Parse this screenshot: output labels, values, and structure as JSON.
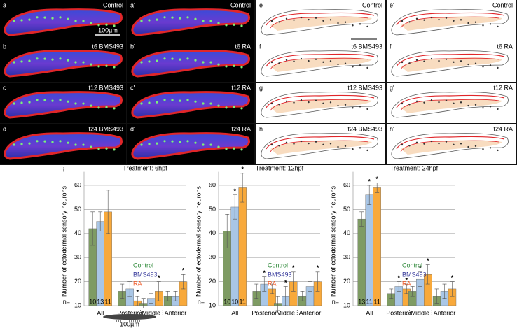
{
  "figure_letter": "i",
  "panels": [
    {
      "letter": "a",
      "label": "Control"
    },
    {
      "letter": "a'",
      "label": "Control"
    },
    {
      "letter": "b",
      "label": "t6 BMS493"
    },
    {
      "letter": "b'",
      "label": "t6 RA"
    },
    {
      "letter": "c",
      "label": "t12 BMS493"
    },
    {
      "letter": "c'",
      "label": "t12 RA"
    },
    {
      "letter": "d",
      "label": "t24 BMS493"
    },
    {
      "letter": "d'",
      "label": "t24 RA"
    }
  ],
  "diagrams": [
    {
      "letter": "e",
      "label": "Control"
    },
    {
      "letter": "e'",
      "label": "Control"
    },
    {
      "letter": "f",
      "label": "t6 BMS493"
    },
    {
      "letter": "f'",
      "label": "t6 RA"
    },
    {
      "letter": "g",
      "label": "t12 BMS493"
    },
    {
      "letter": "g'",
      "label": "t12 RA"
    },
    {
      "letter": "h",
      "label": "t24 BMS493"
    },
    {
      "letter": "h'",
      "label": "t24 RA"
    }
  ],
  "scale_bar_images": "100µm",
  "scale_bar_diagrams": "100µm",
  "scale_bar_chart": "100µm",
  "chart_data": [
    {
      "type": "bar",
      "title": "Treatment: 6hpf",
      "y_label": "Number of ectodermal sensory neurons",
      "categories": [
        "All",
        "Posterior",
        "Middle",
        "Anterior"
      ],
      "ylim": [
        10,
        70
      ],
      "yticks": [
        10,
        20,
        30,
        40,
        50,
        60
      ],
      "grid": true,
      "n_label": "n=",
      "marker": "*",
      "series": [
        {
          "name": "Control",
          "color": "#7e9b63",
          "legend_color": "#2f8a3a",
          "values": [
            42,
            16,
            11,
            14
          ],
          "errors": [
            7,
            3,
            2,
            2
          ],
          "significant": [
            false,
            false,
            false,
            false
          ],
          "n": 10
        },
        {
          "name": "BMS493",
          "color": "#a9c6e6",
          "legend_color": "#34379a",
          "values": [
            45,
            17,
            13,
            14
          ],
          "errors": [
            4,
            3,
            2,
            2
          ],
          "significant": [
            false,
            false,
            false,
            false
          ],
          "n": 13
        },
        {
          "name": "RA",
          "color": "#f8a93b",
          "legend_color": "#f05a28",
          "values": [
            49,
            12,
            16,
            20
          ],
          "errors": [
            9,
            2,
            4,
            3
          ],
          "significant": [
            false,
            true,
            true,
            true
          ],
          "n": 11
        }
      ]
    },
    {
      "type": "bar",
      "title": "Treatment: 12hpf",
      "y_label": "Number of ectodermal sensory neurons",
      "categories": [
        "All",
        "Posterior",
        "Middle",
        "Anterior"
      ],
      "ylim": [
        10,
        70
      ],
      "yticks": [
        10,
        20,
        30,
        40,
        50,
        60
      ],
      "grid": true,
      "n_label": "n=",
      "marker": "*",
      "series": [
        {
          "name": "Control",
          "color": "#7e9b63",
          "legend_color": "#2f8a3a",
          "values": [
            41,
            16,
            11,
            14
          ],
          "errors": [
            7,
            3,
            3,
            2
          ],
          "significant": [
            false,
            false,
            false,
            false
          ],
          "n": 10
        },
        {
          "name": "BMS493",
          "color": "#a9c6e6",
          "legend_color": "#34379a",
          "values": [
            51,
            19,
            14,
            18
          ],
          "errors": [
            5,
            3,
            4,
            2
          ],
          "significant": [
            true,
            true,
            true,
            false
          ],
          "n": 10
        },
        {
          "name": "RA",
          "color": "#f8a93b",
          "legend_color": "#f05a28",
          "values": [
            59,
            17,
            20,
            20
          ],
          "errors": [
            6,
            2,
            4,
            4
          ],
          "significant": [
            true,
            false,
            true,
            true
          ],
          "n": 11
        }
      ]
    },
    {
      "type": "bar",
      "title": "Treatment: 24hpf",
      "y_label": "Number of ectodermal sensory neurons",
      "categories": [
        "All",
        "Posterior",
        "Middle",
        "Anterior"
      ],
      "ylim": [
        10,
        70
      ],
      "yticks": [
        10,
        20,
        30,
        40,
        50,
        60
      ],
      "grid": true,
      "n_label": "n=",
      "marker": "*",
      "series": [
        {
          "name": "Control",
          "color": "#7e9b63",
          "legend_color": "#2f8a3a",
          "values": [
            46,
            15,
            16,
            14
          ],
          "errors": [
            3,
            2,
            2,
            3
          ],
          "significant": [
            false,
            false,
            false,
            false
          ],
          "n": 13
        },
        {
          "name": "BMS493",
          "color": "#a9c6e6",
          "legend_color": "#34379a",
          "values": [
            56,
            18,
            21,
            16
          ],
          "errors": [
            4,
            2,
            3,
            3
          ],
          "significant": [
            true,
            true,
            true,
            false
          ],
          "n": 11
        },
        {
          "name": "RA",
          "color": "#f8a93b",
          "legend_color": "#f05a28",
          "values": [
            59,
            17,
            23,
            17
          ],
          "errors": [
            2,
            2,
            4,
            3
          ],
          "significant": [
            true,
            true,
            true,
            true
          ],
          "n": 11
        }
      ]
    }
  ]
}
